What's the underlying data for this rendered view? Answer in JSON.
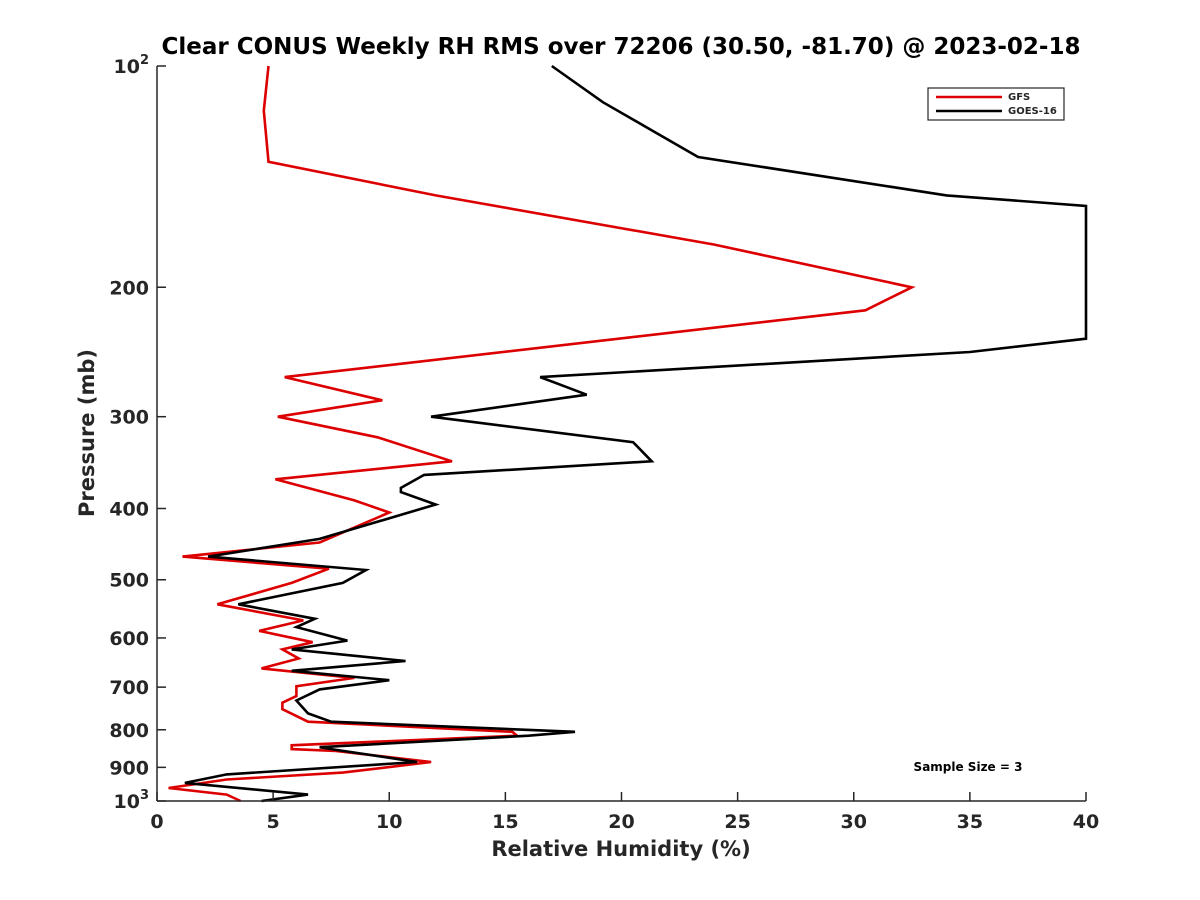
{
  "chart_data": {
    "type": "line",
    "title": "Clear CONUS Weekly RH RMS over 72206 (30.50, -81.70) @ 2023-02-18",
    "xlabel": "Relative Humidity (%)",
    "ylabel": "Pressure (mb)",
    "xlim": [
      0,
      40
    ],
    "ylim": [
      100,
      1000
    ],
    "yscale": "log",
    "y_reversed": true,
    "grid": false,
    "legend_position": "top-right",
    "x_ticks": [
      "0",
      "5",
      "10",
      "15",
      "20",
      "25",
      "30",
      "35",
      "40"
    ],
    "y_ticks": [
      {
        "value": 100,
        "base": "10",
        "exp": "2"
      },
      {
        "value": 200,
        "label": "200"
      },
      {
        "value": 300,
        "label": "300"
      },
      {
        "value": 400,
        "label": "400"
      },
      {
        "value": 500,
        "label": "500"
      },
      {
        "value": 600,
        "label": "600"
      },
      {
        "value": 700,
        "label": "700"
      },
      {
        "value": 800,
        "label": "800"
      },
      {
        "value": 900,
        "label": "900"
      },
      {
        "value": 1000,
        "base": "10",
        "exp": "3"
      }
    ],
    "annotation": "Sample Size = 3",
    "series": [
      {
        "name": "GFS",
        "color": "#dd0000",
        "points": [
          [
            4.8,
            100
          ],
          [
            4.6,
            115
          ],
          [
            4.8,
            135
          ],
          [
            12.0,
            150
          ],
          [
            24.0,
            175
          ],
          [
            32.5,
            200
          ],
          [
            30.5,
            215
          ],
          [
            5.5,
            265
          ],
          [
            9.7,
            285
          ],
          [
            5.2,
            300
          ],
          [
            9.5,
            320
          ],
          [
            12.7,
            345
          ],
          [
            5.1,
            365
          ],
          [
            8.5,
            390
          ],
          [
            10.0,
            405
          ],
          [
            7.0,
            445
          ],
          [
            1.1,
            465
          ],
          [
            7.4,
            483
          ],
          [
            5.8,
            505
          ],
          [
            2.6,
            540
          ],
          [
            6.3,
            568
          ],
          [
            4.4,
            587
          ],
          [
            6.7,
            608
          ],
          [
            5.4,
            622
          ],
          [
            6.1,
            640
          ],
          [
            4.5,
            660
          ],
          [
            8.5,
            680
          ],
          [
            6.0,
            698
          ],
          [
            6.0,
            720
          ],
          [
            5.4,
            735
          ],
          [
            5.4,
            750
          ],
          [
            6.5,
            780
          ],
          [
            15.3,
            805
          ],
          [
            15.5,
            815
          ],
          [
            5.8,
            840
          ],
          [
            5.8,
            850
          ],
          [
            7.7,
            855
          ],
          [
            11.8,
            885
          ],
          [
            8.0,
            915
          ],
          [
            3.0,
            935
          ],
          [
            0.5,
            960
          ],
          [
            3.0,
            980
          ],
          [
            3.6,
            1000
          ]
        ]
      },
      {
        "name": "GOES-16",
        "color": "#000000",
        "points": [
          [
            17.0,
            100
          ],
          [
            19.2,
            112
          ],
          [
            23.3,
            133
          ],
          [
            34.0,
            150
          ],
          [
            40.0,
            155
          ],
          [
            40.0,
            235
          ],
          [
            35.0,
            245
          ],
          [
            16.5,
            265
          ],
          [
            18.5,
            280
          ],
          [
            11.8,
            300
          ],
          [
            20.5,
            325
          ],
          [
            21.3,
            345
          ],
          [
            11.5,
            360
          ],
          [
            10.5,
            375
          ],
          [
            10.5,
            380
          ],
          [
            12.0,
            395
          ],
          [
            7.0,
            440
          ],
          [
            2.2,
            465
          ],
          [
            9.0,
            485
          ],
          [
            8.0,
            505
          ],
          [
            3.5,
            540
          ],
          [
            6.8,
            565
          ],
          [
            6.0,
            580
          ],
          [
            8.2,
            605
          ],
          [
            5.8,
            622
          ],
          [
            10.7,
            645
          ],
          [
            5.8,
            665
          ],
          [
            10.0,
            685
          ],
          [
            7.0,
            705
          ],
          [
            6.0,
            730
          ],
          [
            6.5,
            760
          ],
          [
            7.5,
            780
          ],
          [
            18.0,
            805
          ],
          [
            16.0,
            815
          ],
          [
            7.0,
            845
          ],
          [
            7.5,
            850
          ],
          [
            11.2,
            885
          ],
          [
            3.0,
            920
          ],
          [
            1.2,
            945
          ],
          [
            6.5,
            980
          ],
          [
            4.5,
            1000
          ]
        ]
      }
    ]
  }
}
